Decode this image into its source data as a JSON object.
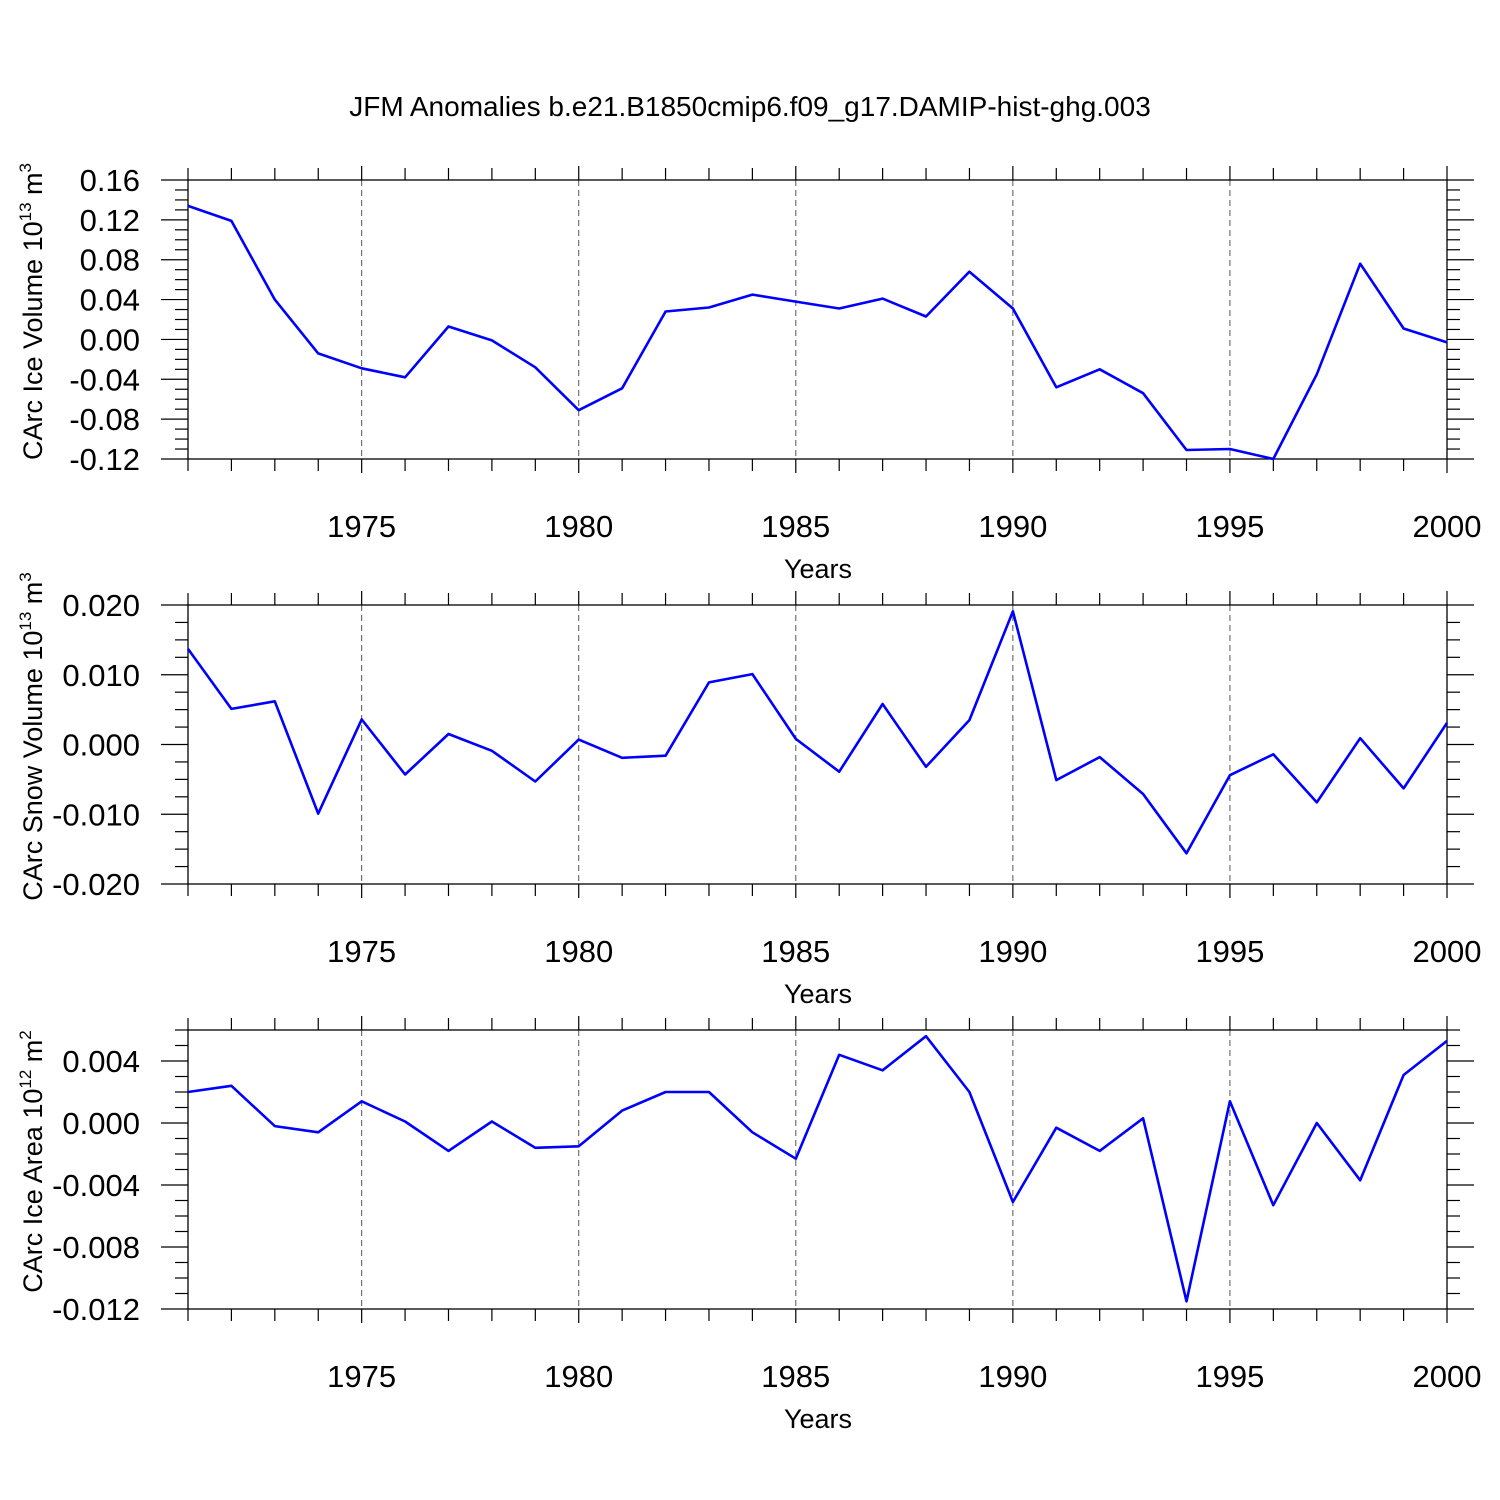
{
  "chart_data": {
    "type": "line",
    "title": "JFM Anomalies b.e21.B1850cmip6.f09_g17.DAMIP-hist-ghg.003",
    "line_color": "#0000ff",
    "grid_color": "#555555",
    "panels": [
      {
        "id": "ice-volume",
        "ylabel": "CArc Ice Volume 10",
        "ylabel_exp": "13",
        "ylabel_unit": " m",
        "ylabel_unit_exp": "3",
        "xlabel": "Years",
        "xlim": [
          1971,
          2000
        ],
        "ylim": [
          -0.12,
          0.16
        ],
        "yticks": [
          -0.12,
          -0.08,
          -0.04,
          0.0,
          0.04,
          0.08,
          0.12,
          0.16
        ],
        "ytick_labels": [
          "-0.12",
          "-0.08",
          "-0.04",
          "0.00",
          "0.04",
          "0.08",
          "0.12",
          "0.16"
        ],
        "xticks": [
          1975,
          1980,
          1985,
          1990,
          1995,
          2000
        ],
        "xtick_labels": [
          "1975",
          "1980",
          "1985",
          "1990",
          "1995",
          "2000"
        ],
        "x": [
          1971,
          1972,
          1973,
          1974,
          1975,
          1976,
          1977,
          1978,
          1979,
          1980,
          1981,
          1982,
          1983,
          1984,
          1985,
          1986,
          1987,
          1988,
          1989,
          1990,
          1991,
          1992,
          1993,
          1994,
          1995,
          1996,
          1997,
          1998,
          1999,
          2000
        ],
        "values": [
          0.134,
          0.119,
          0.04,
          -0.014,
          -0.029,
          -0.038,
          0.013,
          -0.001,
          -0.028,
          -0.071,
          -0.049,
          0.028,
          0.032,
          0.045,
          0.038,
          0.031,
          0.041,
          0.023,
          0.068,
          0.031,
          -0.048,
          -0.03,
          -0.054,
          -0.111,
          -0.11,
          -0.12,
          -0.035,
          0.076,
          0.011,
          -0.003
        ]
      },
      {
        "id": "snow-volume",
        "ylabel": "CArc Snow Volume 10",
        "ylabel_exp": "13",
        "ylabel_unit": " m",
        "ylabel_unit_exp": "3",
        "xlabel": "Years",
        "xlim": [
          1971,
          2000
        ],
        "ylim": [
          -0.02,
          0.02
        ],
        "yticks": [
          -0.02,
          -0.01,
          0.0,
          0.01,
          0.02
        ],
        "ytick_labels": [
          "-0.020",
          "-0.010",
          "0.000",
          "0.010",
          "0.020"
        ],
        "xticks": [
          1975,
          1980,
          1985,
          1990,
          1995,
          2000
        ],
        "xtick_labels": [
          "1975",
          "1980",
          "1985",
          "1990",
          "1995",
          "2000"
        ],
        "x": [
          1971,
          1972,
          1973,
          1974,
          1975,
          1976,
          1977,
          1978,
          1979,
          1980,
          1981,
          1982,
          1983,
          1984,
          1985,
          1986,
          1987,
          1988,
          1989,
          1990,
          1991,
          1992,
          1993,
          1994,
          1995,
          1996,
          1997,
          1998,
          1999,
          2000
        ],
        "values": [
          0.0137,
          0.0051,
          0.0062,
          -0.0099,
          0.0036,
          -0.0043,
          0.0015,
          -0.0009,
          -0.0053,
          0.0007,
          -0.0019,
          -0.0016,
          0.0089,
          0.0101,
          0.0008,
          -0.0039,
          0.0058,
          -0.0032,
          0.0035,
          0.0191,
          -0.0051,
          -0.0018,
          -0.0071,
          -0.0156,
          -0.0044,
          -0.0014,
          -0.0083,
          0.0009,
          -0.0063,
          0.0031
        ]
      },
      {
        "id": "ice-area",
        "ylabel": "CArc Ice Area 10",
        "ylabel_exp": "12",
        "ylabel_unit": " m",
        "ylabel_unit_exp": "2",
        "xlabel": "Years",
        "xlim": [
          1971,
          2000
        ],
        "ylim": [
          -0.012,
          0.006
        ],
        "yticks": [
          -0.012,
          -0.008,
          -0.004,
          0.0,
          0.004
        ],
        "ytick_labels": [
          "-0.012",
          "-0.008",
          "-0.004",
          "0.000",
          "0.004"
        ],
        "xticks": [
          1975,
          1980,
          1985,
          1990,
          1995,
          2000
        ],
        "xtick_labels": [
          "1975",
          "1980",
          "1985",
          "1990",
          "1995",
          "2000"
        ],
        "x": [
          1971,
          1972,
          1973,
          1974,
          1975,
          1976,
          1977,
          1978,
          1979,
          1980,
          1981,
          1982,
          1983,
          1984,
          1985,
          1986,
          1987,
          1988,
          1989,
          1990,
          1991,
          1992,
          1993,
          1994,
          1995,
          1996,
          1997,
          1998,
          1999,
          2000
        ],
        "values": [
          0.002,
          0.0024,
          -0.0002,
          -0.0006,
          0.0014,
          0.0001,
          -0.0018,
          0.0001,
          -0.0016,
          -0.0015,
          0.0008,
          0.002,
          0.002,
          -0.0006,
          -0.0023,
          0.0044,
          0.0034,
          0.0056,
          0.002,
          -0.0051,
          -0.0003,
          -0.0018,
          0.0003,
          -0.0115,
          0.0014,
          -0.0053,
          0.0,
          -0.0037,
          0.0031,
          0.0053
        ]
      }
    ]
  }
}
